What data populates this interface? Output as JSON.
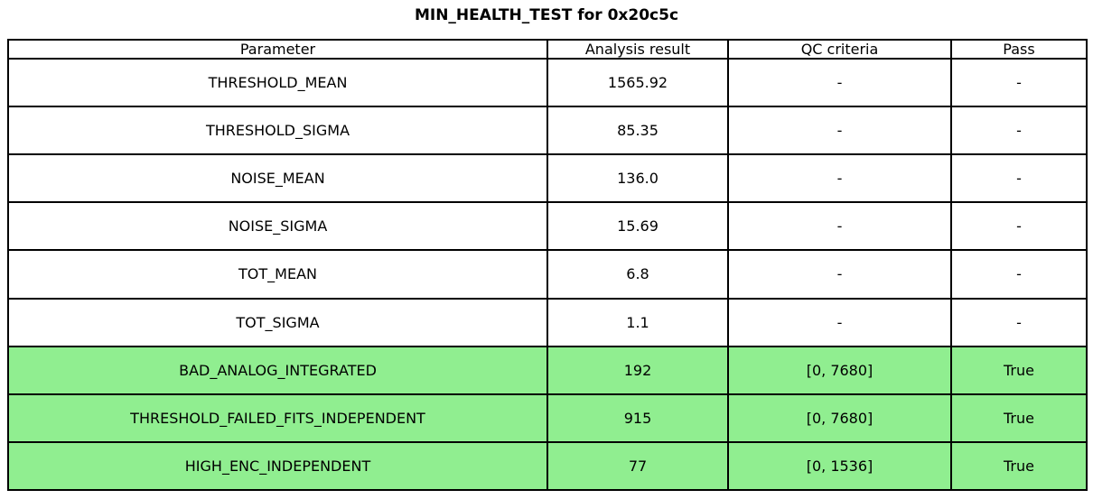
{
  "title": "MIN_HEALTH_TEST for 0x20c5c",
  "colors": {
    "highlight_green": "#90EE90",
    "border": "#000000",
    "background": "#ffffff",
    "text": "#000000"
  },
  "chart_data": {
    "type": "table",
    "title": "MIN_HEALTH_TEST for 0x20c5c",
    "columns": [
      "Parameter",
      "Analysis result",
      "QC criteria",
      "Pass"
    ],
    "rows": [
      {
        "parameter": "THRESHOLD_MEAN",
        "analysis_result": "1565.92",
        "qc_criteria": "-",
        "pass": "-",
        "highlight": false
      },
      {
        "parameter": "THRESHOLD_SIGMA",
        "analysis_result": "85.35",
        "qc_criteria": "-",
        "pass": "-",
        "highlight": false
      },
      {
        "parameter": "NOISE_MEAN",
        "analysis_result": "136.0",
        "qc_criteria": "-",
        "pass": "-",
        "highlight": false
      },
      {
        "parameter": "NOISE_SIGMA",
        "analysis_result": "15.69",
        "qc_criteria": "-",
        "pass": "-",
        "highlight": false
      },
      {
        "parameter": "TOT_MEAN",
        "analysis_result": "6.8",
        "qc_criteria": "-",
        "pass": "-",
        "highlight": false
      },
      {
        "parameter": "TOT_SIGMA",
        "analysis_result": "1.1",
        "qc_criteria": "-",
        "pass": "-",
        "highlight": false
      },
      {
        "parameter": "BAD_ANALOG_INTEGRATED",
        "analysis_result": "192",
        "qc_criteria": "[0, 7680]",
        "pass": "True",
        "highlight": true
      },
      {
        "parameter": "THRESHOLD_FAILED_FITS_INDEPENDENT",
        "analysis_result": "915",
        "qc_criteria": "[0, 7680]",
        "pass": "True",
        "highlight": true
      },
      {
        "parameter": "HIGH_ENC_INDEPENDENT",
        "analysis_result": "77",
        "qc_criteria": "[0, 1536]",
        "pass": "True",
        "highlight": true
      }
    ],
    "layout": {
      "header_row": true,
      "highlight_color": "#90EE90",
      "grid": "all-borders"
    }
  }
}
